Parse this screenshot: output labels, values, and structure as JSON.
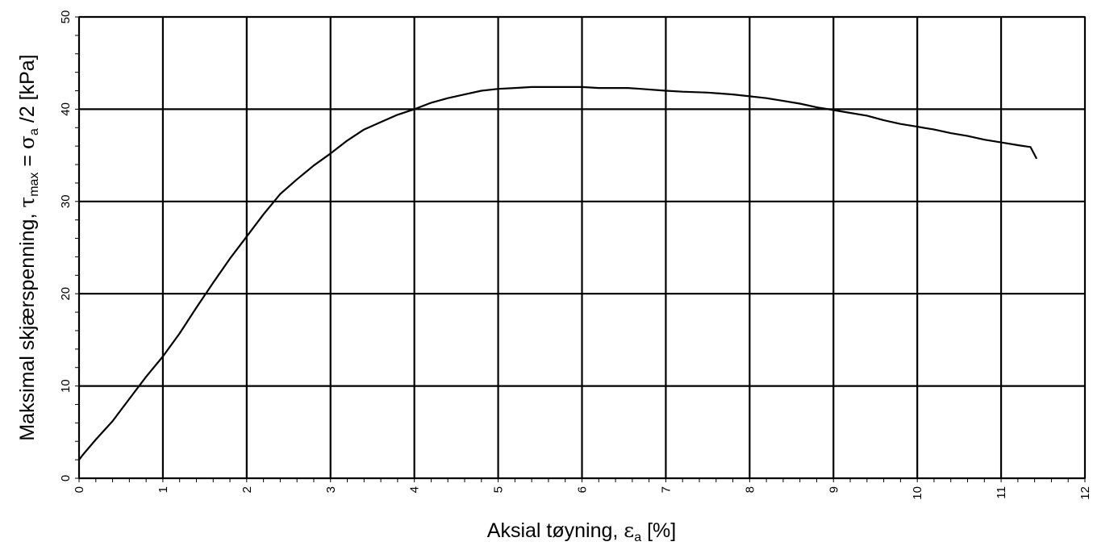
{
  "chart_data": {
    "type": "line",
    "title": "",
    "xlabel": {
      "main": "Aksial tøyning, ",
      "symbol": "ε",
      "sub": "a",
      "tail": " [%]"
    },
    "ylabel": {
      "p1": "Maksimal skjærspenning, ",
      "tau": "τ",
      "sub1": "max",
      "p2": " = ",
      "sigma": "σ",
      "sub2": "a",
      "p3": " /2  [kPa]"
    },
    "xlim": [
      0,
      12
    ],
    "ylim": [
      0,
      50
    ],
    "xticks": [
      "0",
      "1",
      "2",
      "3",
      "4",
      "5",
      "6",
      "7",
      "8",
      "9",
      "10",
      "11",
      "12"
    ],
    "yticks": [
      "0",
      "10",
      "20",
      "30",
      "40",
      "50"
    ],
    "grid": true,
    "legend": "none",
    "series": [
      {
        "color": "#000000",
        "x": [
          0,
          0.05,
          0.2,
          0.4,
          0.6,
          0.8,
          1.0,
          1.2,
          1.4,
          1.6,
          1.8,
          2.0,
          2.2,
          2.4,
          2.6,
          2.8,
          3.0,
          3.2,
          3.4,
          3.6,
          3.8,
          4.0,
          4.2,
          4.4,
          4.6,
          4.8,
          5.0,
          5.2,
          5.4,
          5.6,
          5.8,
          6.0,
          6.2,
          6.4,
          6.55,
          6.7,
          7.0,
          7.2,
          7.5,
          7.8,
          8.0,
          8.2,
          8.4,
          8.6,
          8.8,
          9.0,
          9.2,
          9.4,
          9.6,
          9.8,
          10.0,
          10.2,
          10.4,
          10.6,
          10.8,
          11.0,
          11.2,
          11.35,
          11.42
        ],
        "y": [
          2.0,
          2.6,
          4.2,
          6.2,
          8.6,
          11.0,
          13.2,
          15.7,
          18.5,
          21.2,
          23.8,
          26.2,
          28.6,
          30.8,
          32.4,
          33.9,
          35.2,
          36.6,
          37.8,
          38.6,
          39.4,
          40.0,
          40.7,
          41.2,
          41.6,
          42.0,
          42.2,
          42.3,
          42.4,
          42.4,
          42.4,
          42.4,
          42.3,
          42.3,
          42.3,
          42.2,
          42.0,
          41.9,
          41.8,
          41.6,
          41.4,
          41.2,
          40.9,
          40.6,
          40.2,
          39.9,
          39.6,
          39.3,
          38.8,
          38.4,
          38.1,
          37.8,
          37.4,
          37.1,
          36.7,
          36.4,
          36.1,
          35.9,
          34.7
        ]
      }
    ]
  }
}
